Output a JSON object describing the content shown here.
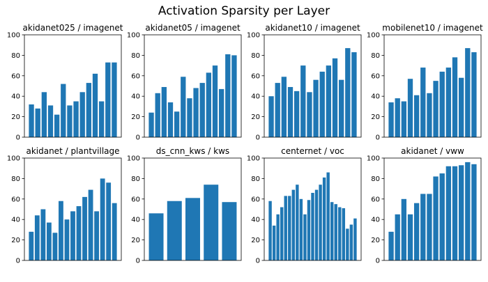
{
  "title": "Activation Sparsity per Layer",
  "colors": {
    "bar": "#1f77b4",
    "axis": "#000000",
    "background": "#ffffff"
  },
  "chart_data": [
    {
      "type": "bar",
      "title": "akidanet025 / imagenet",
      "ylim": [
        0,
        100
      ],
      "yticks": [
        0,
        20,
        40,
        60,
        80,
        100
      ],
      "grid": false,
      "values": [
        32,
        28,
        44,
        31,
        22,
        52,
        31,
        35,
        44,
        53,
        62,
        35,
        73,
        73
      ]
    },
    {
      "type": "bar",
      "title": "akidanet05 / imagenet",
      "ylim": [
        0,
        100
      ],
      "yticks": [
        0,
        20,
        40,
        60,
        80,
        100
      ],
      "grid": false,
      "values": [
        24,
        43,
        49,
        34,
        25,
        59,
        38,
        48,
        53,
        63,
        70,
        47,
        81,
        80
      ]
    },
    {
      "type": "bar",
      "title": "akidanet10 / imagenet",
      "ylim": [
        0,
        100
      ],
      "yticks": [
        0,
        20,
        40,
        60,
        80,
        100
      ],
      "grid": false,
      "values": [
        40,
        53,
        59,
        49,
        45,
        70,
        44,
        56,
        64,
        70,
        77,
        56,
        87,
        83
      ]
    },
    {
      "type": "bar",
      "title": "mobilenet10 / imagenet",
      "ylim": [
        0,
        100
      ],
      "yticks": [
        0,
        20,
        40,
        60,
        80,
        100
      ],
      "grid": false,
      "values": [
        34,
        38,
        35,
        57,
        41,
        68,
        43,
        55,
        64,
        68,
        78,
        58,
        87,
        83
      ]
    },
    {
      "type": "bar",
      "title": "akidanet / plantvillage",
      "ylim": [
        0,
        100
      ],
      "yticks": [
        0,
        20,
        40,
        60,
        80,
        100
      ],
      "grid": false,
      "values": [
        28,
        44,
        50,
        37,
        27,
        58,
        40,
        48,
        53,
        62,
        69,
        48,
        80,
        76,
        56
      ]
    },
    {
      "type": "bar",
      "title": "ds_cnn_kws / kws",
      "ylim": [
        0,
        100
      ],
      "yticks": [
        0,
        20,
        40,
        60,
        80,
        100
      ],
      "grid": false,
      "values": [
        46,
        58,
        61,
        74,
        57
      ]
    },
    {
      "type": "bar",
      "title": "centernet / voc",
      "ylim": [
        0,
        100
      ],
      "yticks": [
        0,
        20,
        40,
        60,
        80,
        100
      ],
      "grid": false,
      "values": [
        58,
        34,
        45,
        52,
        63,
        63,
        69,
        74,
        60,
        45,
        59,
        66,
        69,
        74,
        81,
        86,
        57,
        55,
        52,
        51,
        31,
        35,
        41
      ]
    },
    {
      "type": "bar",
      "title": "akidanet / vww",
      "ylim": [
        0,
        100
      ],
      "yticks": [
        0,
        20,
        40,
        60,
        80,
        100
      ],
      "grid": false,
      "values": [
        28,
        45,
        60,
        45,
        56,
        65,
        65,
        82,
        85,
        92,
        92,
        93,
        96,
        94
      ]
    }
  ]
}
